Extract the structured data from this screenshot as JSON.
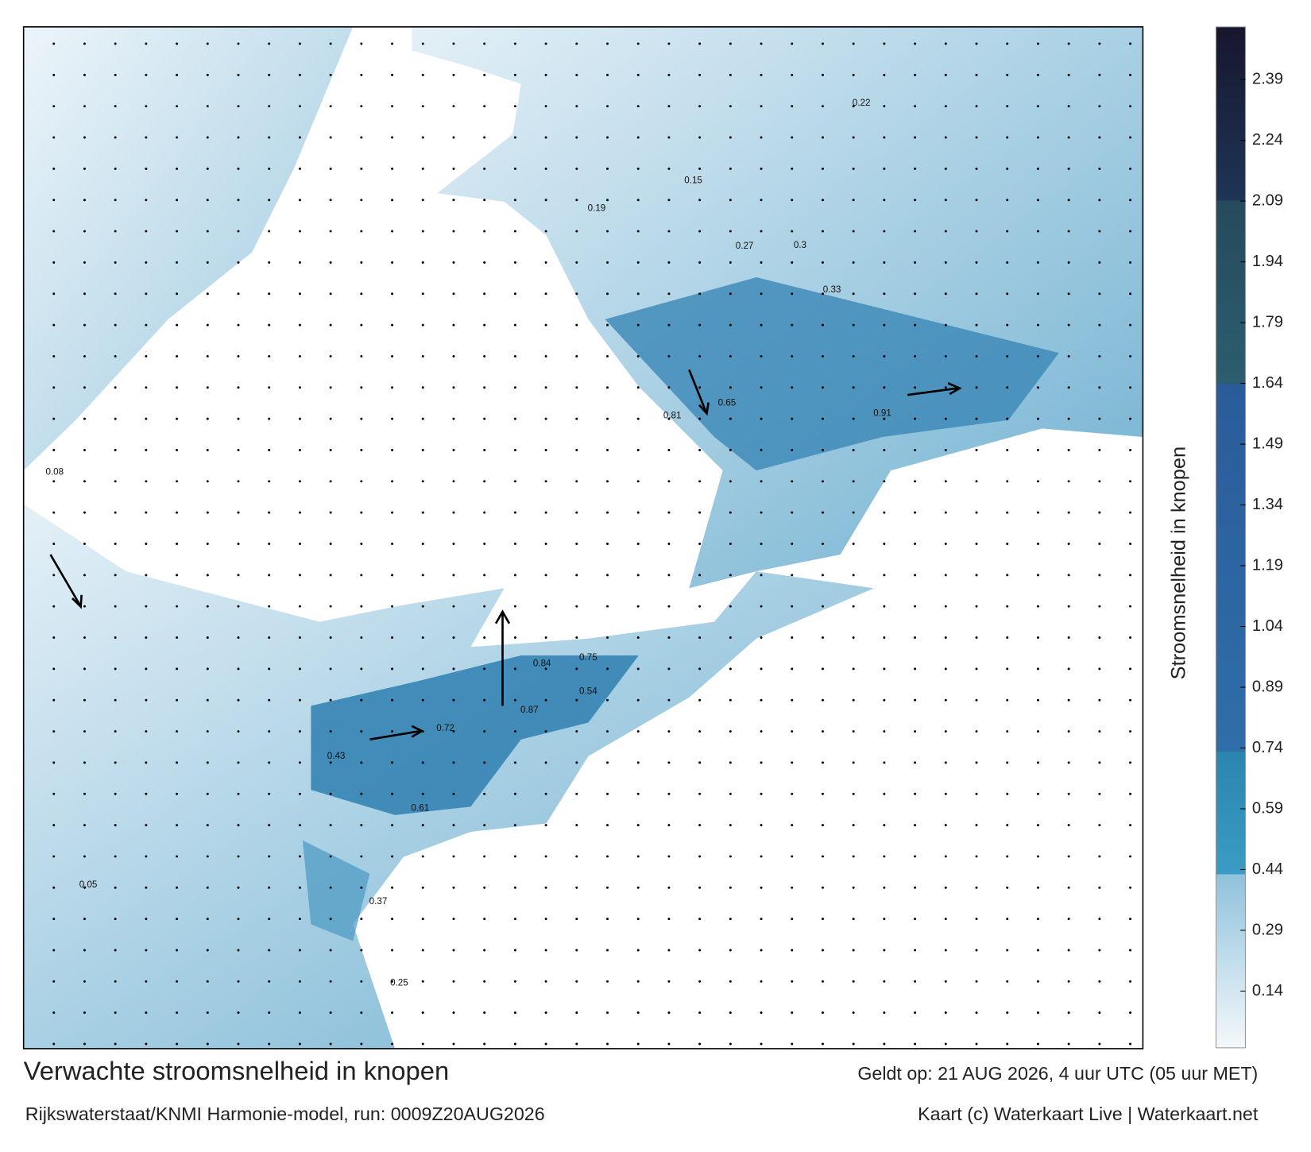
{
  "colorbar": {
    "label": "Stroomsnelheid in knopen",
    "lim": [
      0,
      2.52
    ],
    "ticks": [
      0.14,
      0.29,
      0.44,
      0.59,
      0.74,
      0.89,
      1.04,
      1.19,
      1.34,
      1.49,
      1.64,
      1.79,
      1.94,
      2.09,
      2.24,
      2.39
    ]
  },
  "map_labels": [
    0.87,
    0.84,
    0.75,
    0.91,
    0.81,
    0.65,
    0.72,
    0.61,
    0.43,
    0.37,
    0.25,
    0.3,
    0.15,
    0.22,
    0.05,
    0.08,
    0.54,
    0.27,
    0.19,
    0.33
  ],
  "footer": {
    "title": "Verwachte stroomsnelheid in knopen",
    "subtitle": "Rijkswaterstaat/KNMI Harmonie-model, run: 0009Z20AUG2026",
    "valid": "Geldt op: 21 AUG 2026, 4 uur UTC (05 uur MET)",
    "credit": "Kaart (c) Waterkaart Live | Waterkaart.net"
  }
}
